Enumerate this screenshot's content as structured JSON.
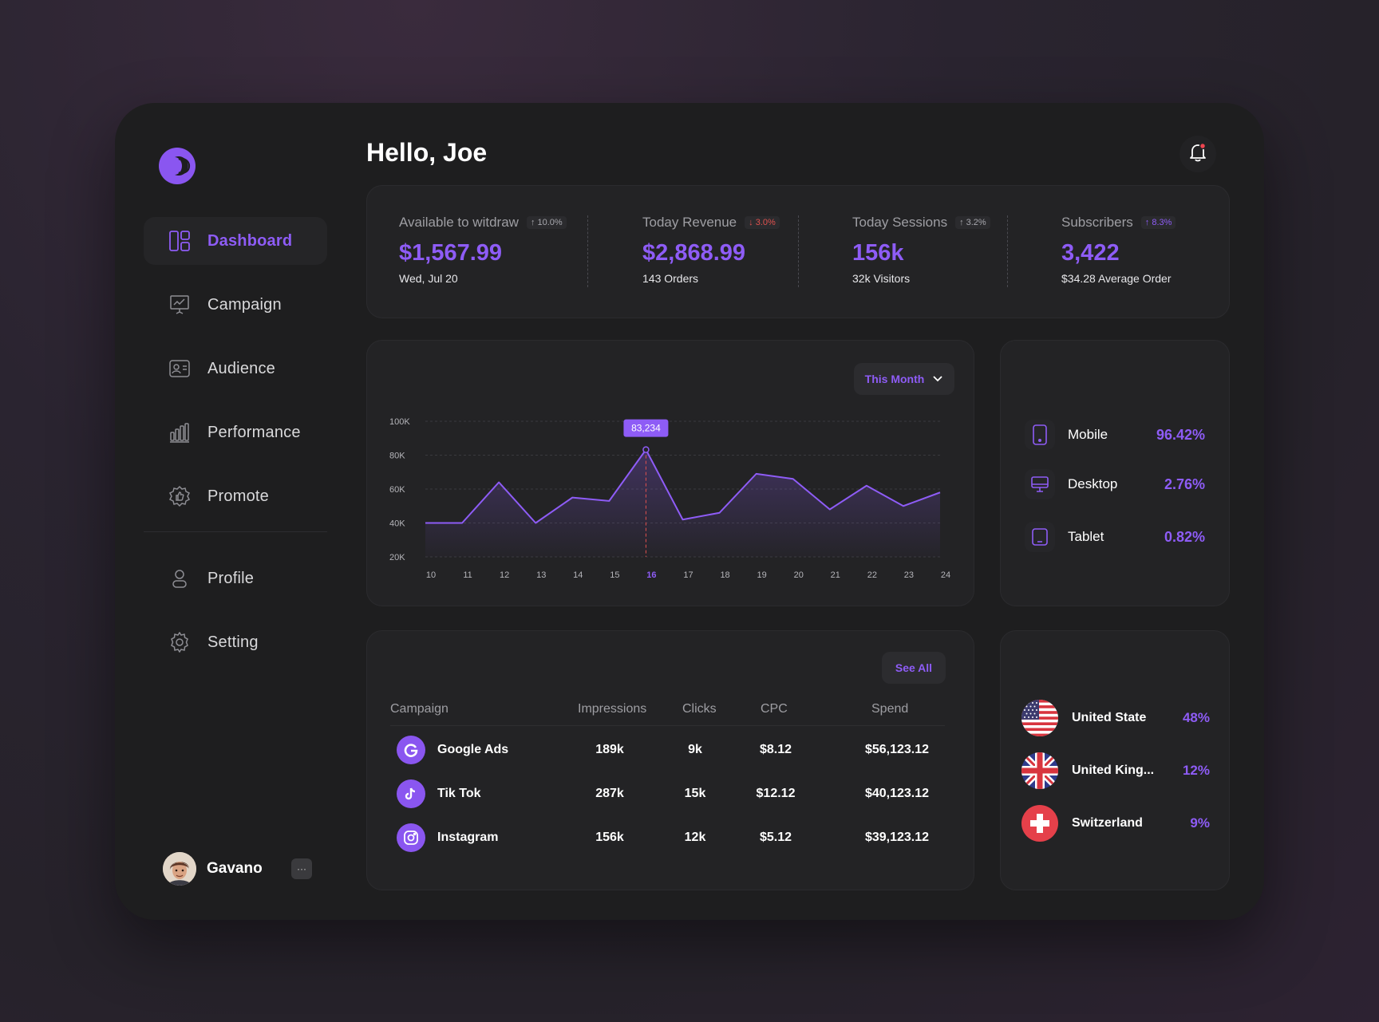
{
  "sidebar": {
    "items": [
      {
        "label": "Dashboard",
        "icon": "dashboard-icon",
        "active": true
      },
      {
        "label": "Campaign",
        "icon": "presentation-icon"
      },
      {
        "label": "Audience",
        "icon": "id-card-icon"
      },
      {
        "label": "Performance",
        "icon": "bar-chart-icon"
      },
      {
        "label": "Promote",
        "icon": "badge-thumb-icon"
      },
      {
        "label": "Profile",
        "icon": "user-icon"
      },
      {
        "label": "Setting",
        "icon": "gear-icon"
      }
    ],
    "user": {
      "name": "Gavano",
      "more": "···"
    }
  },
  "header": {
    "greeting": "Hello, Joe"
  },
  "stats": [
    {
      "title": "Available to witdraw",
      "change": "↑ 10.0%",
      "trend": "up",
      "value": "$1,567.99",
      "sub": "Wed, Jul 20"
    },
    {
      "title": "Today Revenue",
      "change": "↓ 3.0%",
      "trend": "down",
      "value": "$2,868.99",
      "sub": "143 Orders"
    },
    {
      "title": "Today Sessions",
      "change": "↑ 3.2%",
      "trend": "up",
      "value": "156k",
      "sub": "32k Visitors"
    },
    {
      "title": "Subscribers",
      "change": "↑ 8.3%",
      "trend": "up-purple",
      "value": "3,422",
      "sub": "$34.28 Average Order"
    }
  ],
  "chart": {
    "range_label": "This Month",
    "tooltip": "83,234"
  },
  "chart_data": {
    "type": "area",
    "x": [
      10,
      11,
      12,
      13,
      14,
      15,
      16,
      17,
      18,
      19,
      20,
      21,
      22,
      23,
      24
    ],
    "x_labels": [
      "10",
      "11",
      "12",
      "13",
      "14",
      "15",
      "16",
      "17",
      "18",
      "19",
      "20",
      "21",
      "22",
      "23",
      "24"
    ],
    "series": [
      {
        "values": [
          40000,
          40000,
          64000,
          40000,
          55000,
          53000,
          83234,
          42000,
          46000,
          69000,
          66000,
          48000,
          62000,
          50000,
          58000
        ]
      }
    ],
    "y_ticks": [
      "100K",
      "80K",
      "60K",
      "40K",
      "20K"
    ],
    "ylim": [
      20000,
      100000
    ],
    "highlight_x": 16,
    "grid": true,
    "color": "#8e5cf6"
  },
  "devices": [
    {
      "name": "Mobile",
      "value": "96.42%",
      "icon": "smartphone-icon"
    },
    {
      "name": "Desktop",
      "value": "2.76%",
      "icon": "monitor-icon"
    },
    {
      "name": "Tablet",
      "value": "0.82%",
      "icon": "tablet-icon"
    }
  ],
  "campaigns": {
    "see_all": "See All",
    "columns": [
      "Campaign",
      "Impressions",
      "Clicks",
      "CPC",
      "Spend"
    ],
    "rows": [
      {
        "name": "Google Ads",
        "icon": "google-icon",
        "impressions": "189k",
        "clicks": "9k",
        "cpc": "$8.12",
        "spend": "$56,123.12"
      },
      {
        "name": "Tik Tok",
        "icon": "tiktok-icon",
        "impressions": "287k",
        "clicks": "15k",
        "cpc": "$12.12",
        "spend": "$40,123.12"
      },
      {
        "name": "Instagram",
        "icon": "instagram-icon",
        "impressions": "156k",
        "clicks": "12k",
        "cpc": "$5.12",
        "spend": "$39,123.12"
      }
    ]
  },
  "countries": [
    {
      "name": "United State",
      "value": "48%",
      "flag": "us-flag-icon"
    },
    {
      "name": "United King...",
      "value": "12%",
      "flag": "uk-flag-icon"
    },
    {
      "name": "Switzerland",
      "value": "9%",
      "flag": "swiss-flag-icon"
    }
  ]
}
